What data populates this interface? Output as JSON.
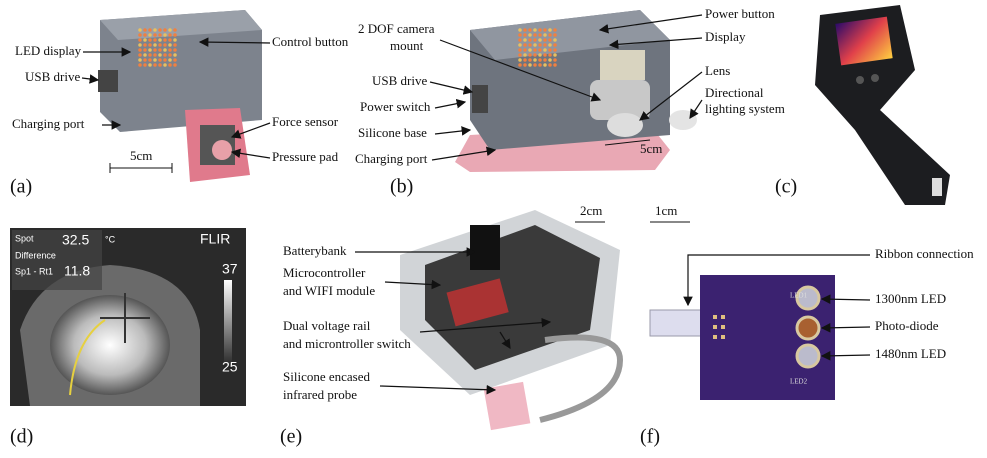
{
  "panels": [
    {
      "label": "(a)",
      "scale": "5cm",
      "annotations": [
        [
          "LED display"
        ],
        [
          "USB drive"
        ],
        [
          "Charging port"
        ],
        [
          "Control button"
        ],
        [
          "Force sensor"
        ],
        [
          "Pressure pad"
        ]
      ]
    },
    {
      "label": "(b)",
      "scale": "5cm",
      "annotations": [
        [
          "2 DOF camera",
          "mount"
        ],
        [
          "USB drive"
        ],
        [
          "Power switch"
        ],
        [
          "Silicone base"
        ],
        [
          "Charging port"
        ],
        [
          "Power button"
        ],
        [
          "Display"
        ],
        [
          "Lens"
        ],
        [
          "Directional",
          "lighting system"
        ]
      ]
    },
    {
      "label": "(c)"
    },
    {
      "label": "(d)",
      "display": {
        "spot_label": "Spot",
        "spot_value": "32.5",
        "unit": "°C",
        "diff_label": "Difference",
        "diff_name": "Sp1 - Rt1",
        "diff_value": "11.8",
        "brand": "FLIR",
        "scale_max": "37",
        "scale_min": "25"
      }
    },
    {
      "label": "(e)",
      "scale": "2cm",
      "annotations": [
        [
          "Batterybank"
        ],
        [
          "Microcontroller",
          "and WIFI module"
        ],
        [
          "Dual voltage rail",
          "and microntroller switch"
        ],
        [
          "Silicone encased",
          "infrared probe"
        ]
      ]
    },
    {
      "label": "(f)",
      "scale": "1cm",
      "annotations": [
        [
          "Ribbon connection"
        ],
        [
          "1300nm LED"
        ],
        [
          "Photo-diode"
        ],
        [
          "1480nm LED"
        ]
      ],
      "board_labels": [
        "LED1",
        "LED2"
      ]
    }
  ]
}
